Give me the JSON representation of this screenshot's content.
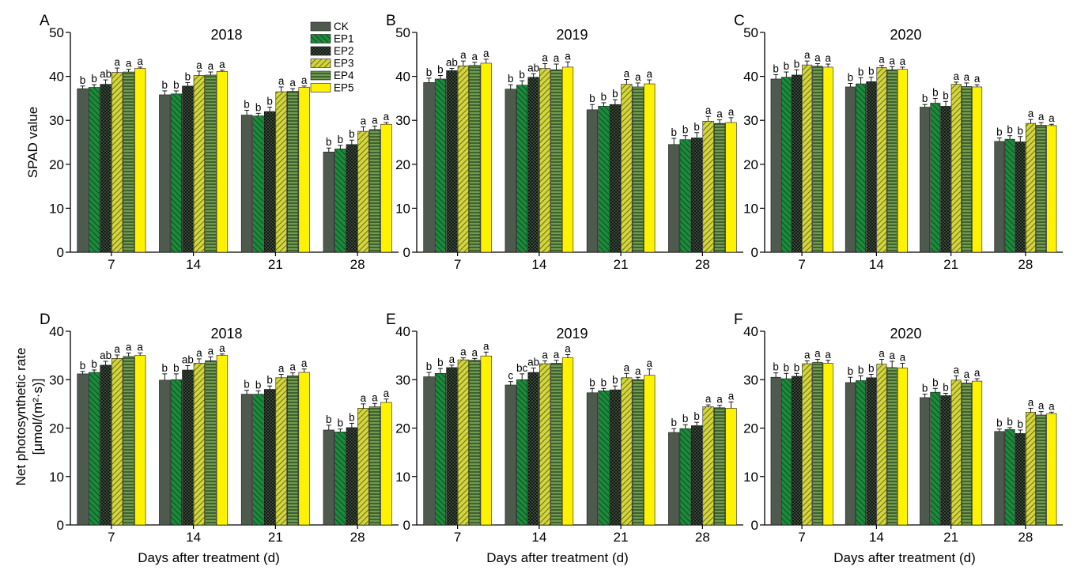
{
  "figure": {
    "ylabel_top": "SPAD value",
    "ylabel_bottom_line1": "Net photosynthetic rate",
    "ylabel_bottom_line2": "[μmol/(m²·s)]",
    "xlabel": "Days after treatment (d)"
  },
  "colors": {
    "CK": "#4e5a4e",
    "EP1": "#1c8a3c",
    "EP2": "#3a4a3a",
    "EP3": "#d2d63a",
    "EP4": "#6e9c50",
    "EP5": "#fff200"
  },
  "chart_data": [
    {
      "type": "bar",
      "panel": "A",
      "title": "2018",
      "categories": [
        "7",
        "14",
        "21",
        "28"
      ],
      "ylim": [
        0,
        50
      ],
      "yticks": [
        0,
        10,
        20,
        30,
        40,
        50
      ],
      "ylabel": "SPAD value",
      "xlabel": "",
      "legend": "top-right",
      "series": [
        {
          "name": "CK",
          "values": [
            37.2,
            35.8,
            31.2,
            22.8
          ],
          "errors": [
            0.6,
            0.9,
            1.1,
            0.9
          ],
          "letters": [
            "b",
            "b",
            "b",
            "b"
          ]
        },
        {
          "name": "EP1",
          "values": [
            37.5,
            36.0,
            31.0,
            23.5
          ],
          "errors": [
            0.6,
            0.7,
            0.6,
            0.8
          ],
          "letters": [
            "b",
            "b",
            "b",
            "b"
          ]
        },
        {
          "name": "EP2",
          "values": [
            38.2,
            37.8,
            32.0,
            24.5
          ],
          "errors": [
            1.0,
            0.8,
            1.0,
            1.0
          ],
          "letters": [
            "ab",
            "b",
            "b",
            "b"
          ]
        },
        {
          "name": "EP3",
          "values": [
            40.9,
            40.2,
            36.5,
            27.5
          ],
          "errors": [
            1.0,
            1.0,
            1.1,
            1.0
          ],
          "letters": [
            "a",
            "a",
            "a",
            "a"
          ]
        },
        {
          "name": "EP4",
          "values": [
            41.0,
            40.3,
            36.6,
            27.9
          ],
          "errors": [
            0.6,
            0.7,
            0.6,
            0.8
          ],
          "letters": [
            "a",
            "a",
            "a",
            "a"
          ]
        },
        {
          "name": "EP5",
          "values": [
            41.8,
            41.1,
            37.5,
            29.1
          ],
          "errors": [
            0.3,
            0.3,
            0.3,
            0.4
          ],
          "letters": [
            "a",
            "a",
            "a",
            "a"
          ]
        }
      ]
    },
    {
      "type": "bar",
      "panel": "B",
      "title": "2019",
      "categories": [
        "7",
        "14",
        "21",
        "28"
      ],
      "ylim": [
        0,
        50
      ],
      "yticks": [
        0,
        10,
        20,
        30,
        40,
        50
      ],
      "ylabel": "",
      "xlabel": "",
      "series": [
        {
          "name": "CK",
          "values": [
            38.6,
            37.1,
            32.4,
            24.5
          ],
          "errors": [
            1.0,
            1.0,
            1.2,
            1.4
          ],
          "letters": [
            "b",
            "b",
            "b",
            "b"
          ]
        },
        {
          "name": "EP1",
          "values": [
            39.4,
            38.0,
            33.2,
            25.6
          ],
          "errors": [
            0.8,
            1.0,
            0.8,
            0.9
          ],
          "letters": [
            "b",
            "b",
            "b",
            "b"
          ]
        },
        {
          "name": "EP2",
          "values": [
            41.3,
            39.8,
            33.6,
            26.0
          ],
          "errors": [
            0.5,
            0.8,
            1.1,
            1.2
          ],
          "letters": [
            "ab",
            "ab",
            "b",
            "b"
          ]
        },
        {
          "name": "EP3",
          "values": [
            42.4,
            41.8,
            38.2,
            29.8
          ],
          "errors": [
            1.1,
            1.1,
            1.1,
            1.1
          ],
          "letters": [
            "a",
            "a",
            "a",
            "a"
          ]
        },
        {
          "name": "EP4",
          "values": [
            42.5,
            41.5,
            37.6,
            29.3
          ],
          "errors": [
            0.7,
            1.3,
            0.9,
            0.8
          ],
          "letters": [
            "a",
            "a",
            "a",
            "a"
          ]
        },
        {
          "name": "EP5",
          "values": [
            43.0,
            42.1,
            38.3,
            29.5
          ],
          "errors": [
            0.9,
            1.2,
            0.9,
            1.1
          ],
          "letters": [
            "a",
            "a",
            "a",
            "a"
          ]
        }
      ]
    },
    {
      "type": "bar",
      "panel": "C",
      "title": "2020",
      "categories": [
        "7",
        "14",
        "21",
        "28"
      ],
      "ylim": [
        0,
        50
      ],
      "yticks": [
        0,
        10,
        20,
        30,
        40,
        50
      ],
      "ylabel": "",
      "xlabel": "",
      "series": [
        {
          "name": "CK",
          "values": [
            39.4,
            37.6,
            33.0,
            25.2
          ],
          "errors": [
            1.0,
            0.8,
            0.6,
            0.8
          ],
          "letters": [
            "b",
            "b",
            "b",
            "b"
          ]
        },
        {
          "name": "EP1",
          "values": [
            39.8,
            38.3,
            33.9,
            25.7
          ],
          "errors": [
            1.2,
            1.4,
            1.1,
            0.8
          ],
          "letters": [
            "b",
            "b",
            "b",
            "b"
          ]
        },
        {
          "name": "EP2",
          "values": [
            40.3,
            38.8,
            33.2,
            25.1
          ],
          "errors": [
            1.2,
            1.0,
            1.1,
            1.2
          ],
          "letters": [
            "b",
            "b",
            "b",
            "b"
          ]
        },
        {
          "name": "EP3",
          "values": [
            42.6,
            42.0,
            38.2,
            29.3
          ],
          "errors": [
            0.9,
            0.5,
            0.5,
            0.9
          ],
          "letters": [
            "a",
            "a",
            "a",
            "a"
          ]
        },
        {
          "name": "EP4",
          "values": [
            42.3,
            41.5,
            37.7,
            28.9
          ],
          "errors": [
            0.6,
            0.7,
            0.8,
            0.6
          ],
          "letters": [
            "a",
            "a",
            "a",
            "a"
          ]
        },
        {
          "name": "EP5",
          "values": [
            42.1,
            41.6,
            37.6,
            28.8
          ],
          "errors": [
            0.7,
            0.5,
            0.5,
            0.3
          ],
          "letters": [
            "a",
            "a",
            "a",
            "a"
          ]
        }
      ]
    },
    {
      "type": "bar",
      "panel": "D",
      "title": "2018",
      "categories": [
        "7",
        "14",
        "21",
        "28"
      ],
      "ylim": [
        0,
        40
      ],
      "yticks": [
        0,
        10,
        20,
        30,
        40
      ],
      "ylabel": "Net photosynthetic rate [μmol/(m²·s)]",
      "xlabel": "Days after treatment (d)",
      "series": [
        {
          "name": "CK",
          "values": [
            31.2,
            29.9,
            27.0,
            19.6
          ],
          "errors": [
            0.5,
            1.3,
            0.8,
            1.0
          ],
          "letters": [
            "b",
            "b",
            "b",
            "b"
          ]
        },
        {
          "name": "EP1",
          "values": [
            31.5,
            30.0,
            27.0,
            19.2
          ],
          "errors": [
            0.5,
            1.2,
            0.7,
            0.6
          ],
          "letters": [
            "b",
            "b",
            "b",
            "b"
          ]
        },
        {
          "name": "EP2",
          "values": [
            33.0,
            32.0,
            28.0,
            20.1
          ],
          "errors": [
            0.8,
            0.9,
            0.7,
            0.9
          ],
          "letters": [
            "ab",
            "ab",
            "b",
            "b"
          ]
        },
        {
          "name": "EP3",
          "values": [
            34.4,
            33.4,
            30.4,
            24.1
          ],
          "errors": [
            0.7,
            0.9,
            0.7,
            0.9
          ],
          "letters": [
            "a",
            "a",
            "a",
            "a"
          ]
        },
        {
          "name": "EP4",
          "values": [
            34.8,
            33.9,
            30.8,
            24.4
          ],
          "errors": [
            0.7,
            0.8,
            0.6,
            0.7
          ],
          "letters": [
            "a",
            "a",
            "a",
            "a"
          ]
        },
        {
          "name": "EP5",
          "values": [
            35.0,
            35.0,
            31.5,
            25.3
          ],
          "errors": [
            0.5,
            0.3,
            0.7,
            0.7
          ],
          "letters": [
            "a",
            "a",
            "a",
            "a"
          ]
        }
      ]
    },
    {
      "type": "bar",
      "panel": "E",
      "title": "2019",
      "categories": [
        "7",
        "14",
        "21",
        "28"
      ],
      "ylim": [
        0,
        40
      ],
      "yticks": [
        0,
        10,
        20,
        30,
        40
      ],
      "ylabel": "",
      "xlabel": "Days after treatment (d)",
      "series": [
        {
          "name": "CK",
          "values": [
            30.6,
            28.9,
            27.3,
            19.1
          ],
          "errors": [
            0.9,
            0.7,
            0.9,
            0.8
          ],
          "letters": [
            "b",
            "c",
            "b",
            "b"
          ]
        },
        {
          "name": "EP1",
          "values": [
            31.3,
            30.0,
            27.7,
            19.9
          ],
          "errors": [
            1.0,
            1.2,
            0.5,
            0.8
          ],
          "letters": [
            "b",
            "bc",
            "b",
            "b"
          ]
        },
        {
          "name": "EP2",
          "values": [
            32.5,
            31.5,
            27.9,
            20.5
          ],
          "errors": [
            0.5,
            0.9,
            0.8,
            0.7
          ],
          "letters": [
            "a",
            "ab",
            "b",
            "b"
          ]
        },
        {
          "name": "EP3",
          "values": [
            34.1,
            33.3,
            30.4,
            24.4
          ],
          "errors": [
            0.4,
            0.6,
            0.9,
            0.4
          ],
          "letters": [
            "a",
            "a",
            "a",
            "a"
          ]
        },
        {
          "name": "EP4",
          "values": [
            34.0,
            33.4,
            30.0,
            24.2
          ],
          "errors": [
            0.4,
            0.6,
            0.5,
            0.5
          ],
          "letters": [
            "a",
            "a",
            "a",
            "a"
          ]
        },
        {
          "name": "EP5",
          "values": [
            34.9,
            34.5,
            30.9,
            24.1
          ],
          "errors": [
            0.8,
            0.7,
            1.3,
            1.3
          ],
          "letters": [
            "a",
            "a",
            "a",
            "a"
          ]
        }
      ]
    },
    {
      "type": "bar",
      "panel": "F",
      "title": "2020",
      "categories": [
        "7",
        "14",
        "21",
        "28"
      ],
      "ylim": [
        0,
        40
      ],
      "yticks": [
        0,
        10,
        20,
        30,
        40
      ],
      "ylabel": "",
      "xlabel": "Days after treatment (d)",
      "series": [
        {
          "name": "CK",
          "values": [
            30.5,
            29.4,
            26.3,
            19.3
          ],
          "errors": [
            0.9,
            1.1,
            0.7,
            0.5
          ],
          "letters": [
            "b",
            "b",
            "b",
            "b"
          ]
        },
        {
          "name": "EP1",
          "values": [
            30.2,
            29.8,
            27.4,
            19.7
          ],
          "errors": [
            1.1,
            1.0,
            0.8,
            0.4
          ],
          "letters": [
            "b",
            "b",
            "b",
            "b"
          ]
        },
        {
          "name": "EP2",
          "values": [
            30.7,
            30.4,
            26.7,
            18.9
          ],
          "errors": [
            0.6,
            0.7,
            0.5,
            0.7
          ],
          "letters": [
            "b",
            "b",
            "b",
            "b"
          ]
        },
        {
          "name": "EP3",
          "values": [
            33.3,
            33.2,
            29.9,
            23.3
          ],
          "errors": [
            0.6,
            1.0,
            0.9,
            0.8
          ],
          "letters": [
            "a",
            "a",
            "a",
            "a"
          ]
        },
        {
          "name": "EP4",
          "values": [
            33.6,
            32.5,
            29.3,
            22.7
          ],
          "errors": [
            0.6,
            1.3,
            0.6,
            0.7
          ],
          "letters": [
            "a",
            "a",
            "a",
            "a"
          ]
        },
        {
          "name": "EP5",
          "values": [
            33.4,
            32.4,
            29.7,
            23.0
          ],
          "errors": [
            0.6,
            1.0,
            0.5,
            0.3
          ],
          "letters": [
            "a",
            "a",
            "a",
            "a"
          ]
        }
      ]
    }
  ]
}
